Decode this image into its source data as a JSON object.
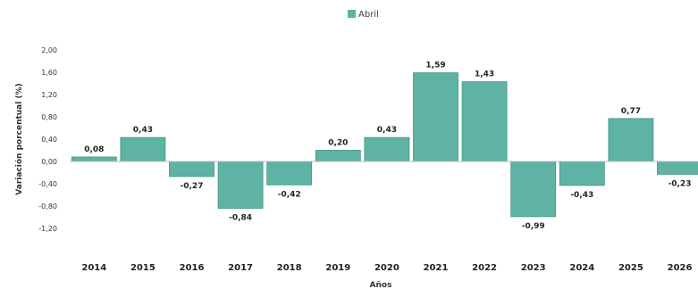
{
  "chart_data": {
    "type": "bar",
    "title": "",
    "xlabel": "Años",
    "ylabel": "Variación porcentual (%)",
    "categories": [
      "2014",
      "2015",
      "2016",
      "2017",
      "2018",
      "2019",
      "2020",
      "2021",
      "2022",
      "2023",
      "2024",
      "2025",
      "2026"
    ],
    "series": [
      {
        "name": "Abril",
        "values": [
          0.08,
          0.43,
          -0.27,
          -0.84,
          -0.42,
          0.2,
          0.43,
          1.59,
          1.43,
          -0.99,
          -0.43,
          0.77,
          -0.23
        ],
        "labels": [
          "0,08",
          "0,43",
          "-0,27",
          "-0,84",
          "-0,42",
          "0,20",
          "0,43",
          "1,59",
          "1,43",
          "-0,99",
          "-0,43",
          "0,77",
          "-0,23"
        ]
      }
    ],
    "yticks": [
      2.0,
      1.6,
      1.2,
      0.8,
      0.4,
      0.0,
      -0.4,
      -0.8,
      -1.2
    ],
    "ytick_labels": [
      "2,00",
      "1,60",
      "1,20",
      "0,80",
      "0,40",
      "0,00",
      "-0,40",
      "-0,80",
      "-1,20"
    ],
    "ylim": [
      -1.2,
      2.0
    ],
    "grid": false,
    "legend_position": "top-center",
    "colors": {
      "bar": "#5fb3a4",
      "bar_stroke": "#3f9384",
      "axis": "#bbbbbb"
    }
  }
}
